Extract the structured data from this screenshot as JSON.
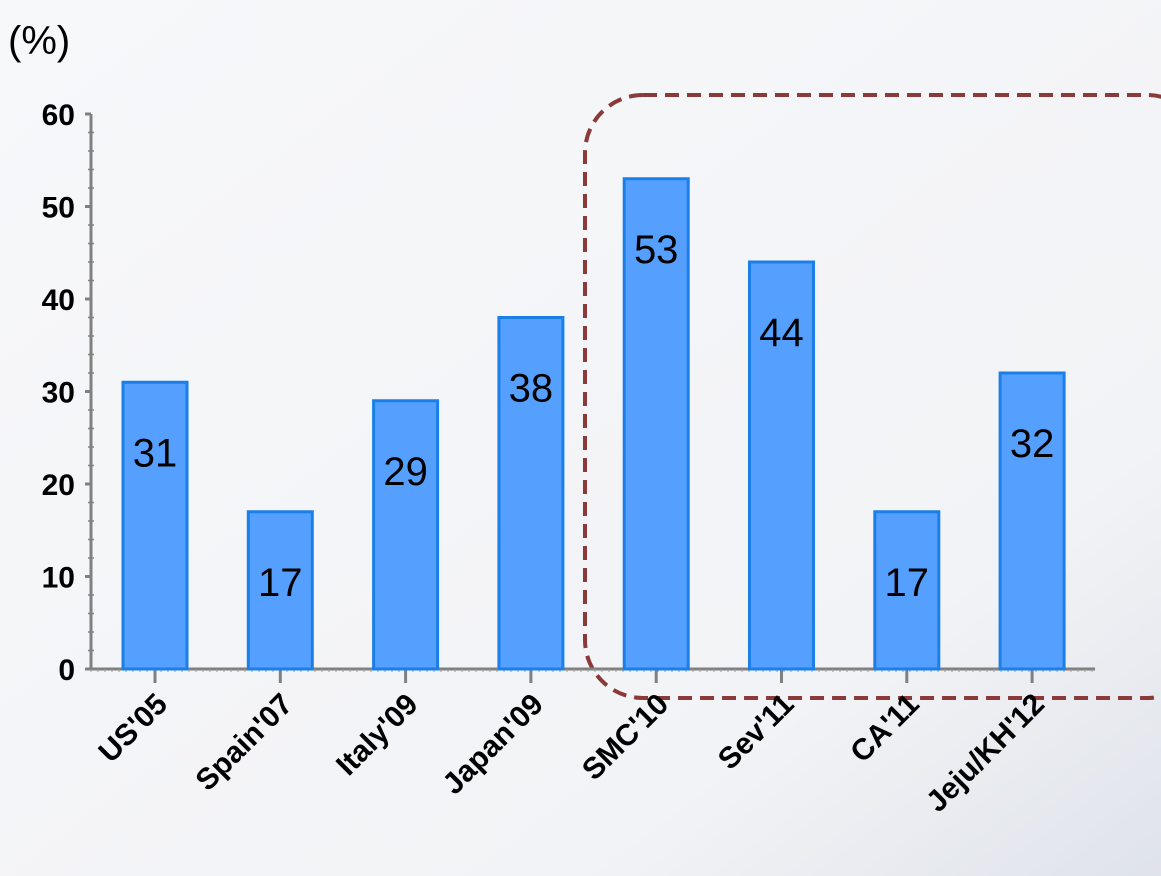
{
  "chart_data": {
    "type": "bar",
    "unit_label": "(%)",
    "categories": [
      "US'05",
      "Spain'07",
      "Italy'09",
      "Japan'09",
      "SMC'10",
      "Sev'11",
      "CA'11",
      "Jeju/KH'12"
    ],
    "values": [
      31,
      17,
      29,
      38,
      53,
      44,
      17,
      32
    ],
    "y_ticks": [
      "0",
      "10",
      "20",
      "30",
      "40",
      "50",
      "60"
    ],
    "ylim": [
      0,
      60
    ],
    "grid": false,
    "legend": "none",
    "bar_color": "#55a0ff",
    "bar_edge_color": "#1a7fe8",
    "highlight_box_color": "#8b3a3a",
    "highlighted_categories": [
      "SMC'10",
      "Sev'11",
      "CA'11",
      "Jeju/KH'12"
    ]
  }
}
